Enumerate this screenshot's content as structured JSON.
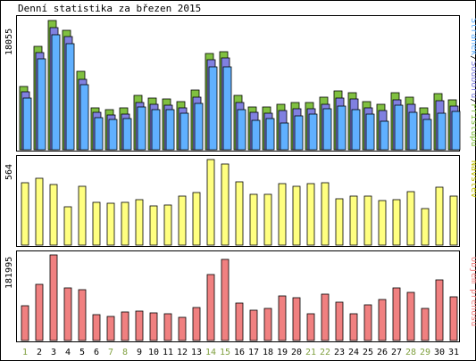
{
  "chart_data": [
    {
      "type": "bar",
      "title": "Denní statistika za březen 2015",
      "ylabel": "18055",
      "legend": [
        "Přístupů",
        "Souborů",
        "Stránek"
      ],
      "legend_separator": "/",
      "days": [
        "1",
        "2",
        "3",
        "4",
        "5",
        "6",
        "7",
        "8",
        "9",
        "10",
        "11",
        "12",
        "13",
        "14",
        "15",
        "16",
        "17",
        "18",
        "19",
        "20",
        "21",
        "22",
        "23",
        "24",
        "25",
        "26",
        "27",
        "28",
        "29",
        "30",
        "31"
      ],
      "weekend_days": [
        "1",
        "7",
        "8",
        "14",
        "15",
        "21",
        "22",
        "28",
        "29"
      ],
      "series": [
        {
          "name": "Přístupů",
          "color": "#80c040",
          "values": [
            8600,
            14000,
            17500,
            16100,
            10600,
            5700,
            5400,
            5600,
            7300,
            7000,
            6900,
            6500,
            8100,
            13000,
            13300,
            7300,
            5800,
            5800,
            6100,
            6400,
            6400,
            7100,
            7900,
            7700,
            6500,
            6100,
            7700,
            7100,
            5600,
            7600,
            6800
          ]
        },
        {
          "name": "Souborů",
          "color": "#8080e0",
          "values": [
            8200,
            13500,
            16900,
            15600,
            9900,
            5400,
            5100,
            5200,
            6800,
            6500,
            6400,
            6000,
            7500,
            12500,
            12700,
            6800,
            5400,
            5300,
            5700,
            5900,
            5900,
            6500,
            7300,
            7200,
            6000,
            5700,
            7100,
            6500,
            5200,
            7000,
            6300
          ]
        },
        {
          "name": "Stránek",
          "color": "#60b0ff",
          "values": [
            7700,
            13000,
            16300,
            15000,
            9500,
            5000,
            4800,
            4900,
            6500,
            6100,
            6100,
            5700,
            7000,
            11900,
            11900,
            6100,
            4700,
            4900,
            4300,
            5300,
            5500,
            6200,
            6600,
            6100,
            5500,
            4600,
            6700,
            5800,
            4800,
            5700,
            5900
          ]
        }
      ],
      "ylim": [
        0,
        18055
      ]
    },
    {
      "type": "bar",
      "ylabel": "564",
      "legend": [
        "Návštěv"
      ],
      "series": [
        {
          "name": "Návštěv",
          "color": "#ffff80",
          "values": [
            410,
            440,
            400,
            250,
            390,
            280,
            275,
            280,
            300,
            260,
            265,
            325,
            345,
            564,
            535,
            420,
            335,
            335,
            405,
            390,
            405,
            410,
            305,
            325,
            325,
            295,
            300,
            355,
            240,
            380,
            325
          ]
        }
      ],
      "ylim": [
        0,
        564
      ]
    },
    {
      "type": "bar",
      "ylabel": "181995",
      "legend": [
        "Objem přenosu"
      ],
      "series": [
        {
          "name": "Objem přenosu",
          "color": "#f08080",
          "values": [
            73000,
            119000,
            181995,
            111000,
            109000,
            55000,
            52000,
            60000,
            62000,
            58000,
            56000,
            50000,
            70000,
            140000,
            172000,
            80000,
            64000,
            68000,
            95000,
            91000,
            56000,
            99000,
            82000,
            57000,
            75000,
            88000,
            111000,
            103000,
            68000,
            129000,
            92000
          ]
        }
      ],
      "ylim": [
        0,
        181995
      ]
    }
  ]
}
